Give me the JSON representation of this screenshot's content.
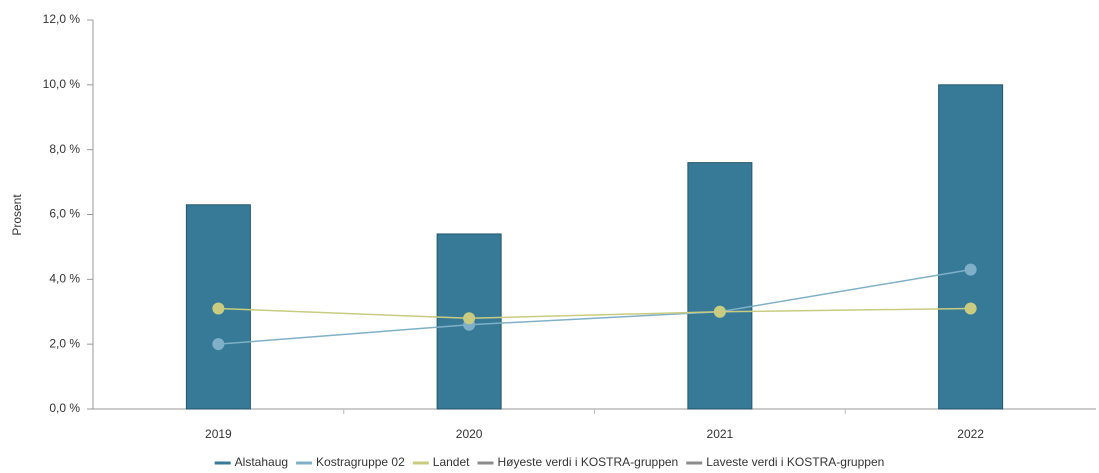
{
  "chart_data": {
    "type": "bar",
    "y_label": "Prosent",
    "categories": [
      "2019",
      "2020",
      "2021",
      "2022"
    ],
    "series": [
      {
        "name": "Alstahaug",
        "type": "bar",
        "color": "#367a98",
        "values": [
          6.3,
          5.4,
          7.6,
          10.0
        ]
      },
      {
        "name": "Kostragruppe 02",
        "type": "line",
        "color": "#7fb0c8",
        "values": [
          2.0,
          2.6,
          3.0,
          4.3
        ]
      },
      {
        "name": "Landet",
        "type": "line",
        "color": "#c9cc80",
        "values": [
          3.1,
          2.8,
          3.0,
          3.1
        ]
      },
      {
        "name": "Høyeste verdi i KOSTRA-gruppen",
        "type": "line",
        "color": "#8c8c8c",
        "values": [
          null,
          null,
          null,
          null
        ]
      },
      {
        "name": "Laveste verdi i KOSTRA-gruppen",
        "type": "line",
        "color": "#8c8c8c",
        "values": [
          null,
          null,
          null,
          null
        ]
      }
    ],
    "ylim": [
      0,
      12
    ],
    "yticks": [
      {
        "value": 0,
        "label": "0,0 %"
      },
      {
        "value": 2,
        "label": "2,0 %"
      },
      {
        "value": 4,
        "label": "4,0 %"
      },
      {
        "value": 6,
        "label": "6,0 %"
      },
      {
        "value": 8,
        "label": "8,0 %"
      },
      {
        "value": 10,
        "label": "10,0 %"
      },
      {
        "value": 12,
        "label": "12,0 %"
      }
    ],
    "grid": false
  }
}
